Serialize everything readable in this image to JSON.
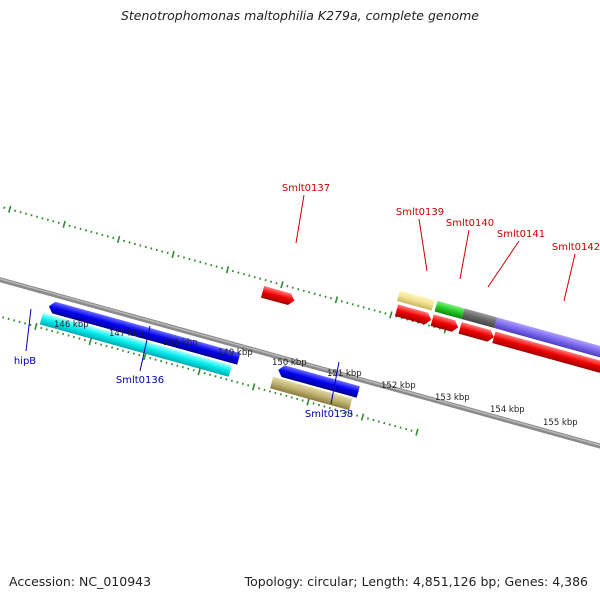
{
  "title": "Stenotrophomonas maltophilia K279a, complete genome",
  "footer": {
    "accession": "Accession: NC_010943",
    "summary": "Topology: circular; Length: 4,851,126 bp; Genes: 4,386"
  },
  "colors": {
    "backbone": "#808080",
    "tick": "#2e8b2e",
    "forward_label": "#cc0000",
    "reverse_label": "#0000b0",
    "scale_label": "#222222"
  },
  "scale_labels": [
    "146 kbp",
    "147 kbp",
    "148 kbp",
    "149 kbp",
    "150 kbp",
    "151 kbp",
    "152 kbp",
    "153 kbp",
    "154 kbp",
    "155 kbp"
  ],
  "gene_labels": {
    "forward": [
      "Smlt0137",
      "Smlt0139",
      "Smlt0140",
      "Smlt0141",
      "Smlt0142"
    ],
    "reverse": [
      "hipB",
      "Smlt0136",
      "Smlt0138"
    ]
  }
}
